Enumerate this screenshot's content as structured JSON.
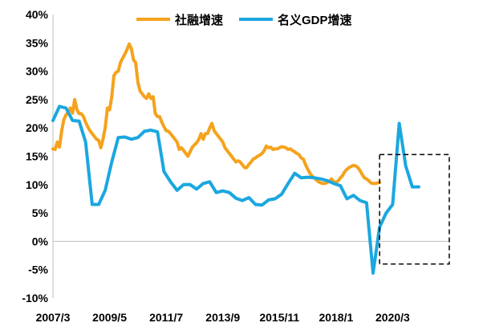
{
  "chart_data": {
    "type": "line",
    "title": "",
    "xlabel": "",
    "ylabel": "",
    "x_ticks": [
      "2007/3",
      "2009/5",
      "2011/7",
      "2013/9",
      "2015/11",
      "2018/1",
      "2020/3"
    ],
    "x_tick_months": [
      0,
      26,
      52,
      78,
      104,
      130,
      156
    ],
    "y_ticks": [
      "40%",
      "35%",
      "30%",
      "25%",
      "20%",
      "15%",
      "10%",
      "5%",
      "0%",
      "-5%",
      "-10%"
    ],
    "y_tick_values": [
      40,
      35,
      30,
      25,
      20,
      15,
      10,
      5,
      0,
      -5,
      -10
    ],
    "ylim": [
      -10,
      40
    ],
    "xlim_months": [
      0,
      182
    ],
    "legend_position": "top-right",
    "highlight_box": {
      "x_from": 150,
      "x_to": 182,
      "y_from": -4,
      "y_to": 15.3,
      "style": "dashed"
    },
    "series": [
      {
        "name": "社融增速",
        "color": "#F5A21D",
        "points": [
          [
            0,
            16.3
          ],
          [
            1,
            16.2
          ],
          [
            2,
            17.5
          ],
          [
            3,
            16.6
          ],
          [
            4,
            19.5
          ],
          [
            5,
            21.5
          ],
          [
            6,
            22.3
          ],
          [
            7,
            22.8
          ],
          [
            8,
            23.5
          ],
          [
            9,
            22.6
          ],
          [
            10,
            25.0
          ],
          [
            11,
            23.2
          ],
          [
            12,
            22.5
          ],
          [
            13,
            22.5
          ],
          [
            14,
            22.0
          ],
          [
            15,
            21.0
          ],
          [
            16,
            20.2
          ],
          [
            17,
            19.5
          ],
          [
            18,
            19.0
          ],
          [
            19,
            18.5
          ],
          [
            20,
            18.0
          ],
          [
            21,
            17.8
          ],
          [
            22,
            16.5
          ],
          [
            23,
            18.0
          ],
          [
            24,
            20.0
          ],
          [
            25,
            23.5
          ],
          [
            26,
            23.2
          ],
          [
            27,
            25.5
          ],
          [
            28,
            29.2
          ],
          [
            29,
            29.8
          ],
          [
            30,
            30.0
          ],
          [
            31,
            31.5
          ],
          [
            32,
            32.3
          ],
          [
            33,
            33.0
          ],
          [
            34,
            33.8
          ],
          [
            35,
            34.8
          ],
          [
            36,
            34.0
          ],
          [
            37,
            32.0
          ],
          [
            38,
            31.5
          ],
          [
            39,
            28.0
          ],
          [
            40,
            26.5
          ],
          [
            41,
            26.0
          ],
          [
            42,
            25.5
          ],
          [
            43,
            25.2
          ],
          [
            44,
            26.0
          ],
          [
            45,
            25.2
          ],
          [
            46,
            25.5
          ],
          [
            47,
            22.5
          ],
          [
            48,
            22.0
          ],
          [
            49,
            22.0
          ],
          [
            50,
            21.0
          ],
          [
            51,
            20.2
          ],
          [
            52,
            19.5
          ],
          [
            53,
            19.4
          ],
          [
            54,
            19.0
          ],
          [
            55,
            18.5
          ],
          [
            56,
            18.0
          ],
          [
            57,
            17.5
          ],
          [
            58,
            16.2
          ],
          [
            59,
            16.5
          ],
          [
            60,
            16.0
          ],
          [
            61,
            15.5
          ],
          [
            62,
            15.0
          ],
          [
            63,
            15.8
          ],
          [
            64,
            16.6
          ],
          [
            65,
            17.0
          ],
          [
            66,
            17.4
          ],
          [
            67,
            18.0
          ],
          [
            68,
            19.0
          ],
          [
            69,
            18.0
          ],
          [
            70,
            19.0
          ],
          [
            71,
            19.0
          ],
          [
            72,
            20.0
          ],
          [
            73,
            20.8
          ],
          [
            74,
            19.5
          ],
          [
            75,
            19.0
          ],
          [
            76,
            18.5
          ],
          [
            77,
            18.0
          ],
          [
            78,
            17.5
          ],
          [
            79,
            16.5
          ],
          [
            80,
            16.0
          ],
          [
            81,
            15.5
          ],
          [
            82,
            15.0
          ],
          [
            83,
            14.5
          ],
          [
            84,
            14.0
          ],
          [
            85,
            14.2
          ],
          [
            86,
            14.0
          ],
          [
            87,
            13.5
          ],
          [
            88,
            13.0
          ],
          [
            89,
            13.0
          ],
          [
            90,
            13.6
          ],
          [
            91,
            14.0
          ],
          [
            92,
            14.5
          ],
          [
            93,
            14.7
          ],
          [
            94,
            15.0
          ],
          [
            95,
            15.2
          ],
          [
            96,
            15.5
          ],
          [
            97,
            16.0
          ],
          [
            98,
            16.8
          ],
          [
            99,
            16.5
          ],
          [
            100,
            16.6
          ],
          [
            101,
            16.2
          ],
          [
            102,
            16.3
          ],
          [
            103,
            16.3
          ],
          [
            104,
            16.5
          ],
          [
            105,
            16.7
          ],
          [
            106,
            16.6
          ],
          [
            107,
            16.5
          ],
          [
            108,
            16.2
          ],
          [
            109,
            16.3
          ],
          [
            110,
            16.0
          ],
          [
            111,
            15.8
          ],
          [
            112,
            15.5
          ],
          [
            113,
            15.3
          ],
          [
            114,
            14.7
          ],
          [
            115,
            14.5
          ],
          [
            116,
            13.5
          ],
          [
            117,
            12.7
          ],
          [
            118,
            12.0
          ],
          [
            119,
            11.5
          ],
          [
            120,
            11.2
          ],
          [
            121,
            10.8
          ],
          [
            122,
            10.5
          ],
          [
            123,
            10.3
          ],
          [
            124,
            10.2
          ],
          [
            125,
            10.2
          ],
          [
            126,
            10.4
          ],
          [
            127,
            10.7
          ],
          [
            128,
            11.0
          ],
          [
            129,
            10.5
          ],
          [
            130,
            10.4
          ],
          [
            131,
            10.7
          ],
          [
            132,
            11.2
          ],
          [
            133,
            11.6
          ],
          [
            134,
            12.3
          ],
          [
            135,
            12.7
          ],
          [
            136,
            13.0
          ],
          [
            137,
            13.2
          ],
          [
            138,
            13.4
          ],
          [
            139,
            13.3
          ],
          [
            140,
            13.0
          ],
          [
            141,
            12.5
          ],
          [
            142,
            11.8
          ],
          [
            143,
            11.2
          ],
          [
            144,
            11.0
          ],
          [
            145,
            10.7
          ],
          [
            146,
            10.3
          ],
          [
            147,
            10.2
          ],
          [
            148,
            10.2
          ],
          [
            149,
            10.3
          ],
          [
            150,
            10.4
          ]
        ]
      },
      {
        "name": "名义GDP增速",
        "color": "#1BA7E0",
        "points": [
          [
            0,
            21.3
          ],
          [
            3,
            23.8
          ],
          [
            6,
            23.5
          ],
          [
            9,
            21.3
          ],
          [
            12,
            21.2
          ],
          [
            15,
            17.5
          ],
          [
            18,
            6.5
          ],
          [
            21,
            6.5
          ],
          [
            24,
            9.0
          ],
          [
            27,
            14.0
          ],
          [
            30,
            18.3
          ],
          [
            33,
            18.4
          ],
          [
            36,
            18.0
          ],
          [
            39,
            18.3
          ],
          [
            42,
            19.4
          ],
          [
            45,
            19.6
          ],
          [
            48,
            19.3
          ],
          [
            51,
            12.3
          ],
          [
            54,
            10.5
          ],
          [
            57,
            9.0
          ],
          [
            60,
            10.0
          ],
          [
            63,
            10.0
          ],
          [
            66,
            9.2
          ],
          [
            69,
            10.2
          ],
          [
            72,
            10.5
          ],
          [
            75,
            8.6
          ],
          [
            78,
            8.9
          ],
          [
            81,
            8.6
          ],
          [
            84,
            7.6
          ],
          [
            87,
            7.2
          ],
          [
            90,
            7.7
          ],
          [
            93,
            6.5
          ],
          [
            96,
            6.4
          ],
          [
            99,
            7.3
          ],
          [
            102,
            7.5
          ],
          [
            105,
            8.3
          ],
          [
            108,
            10.2
          ],
          [
            111,
            12.0
          ],
          [
            114,
            11.2
          ],
          [
            117,
            11.3
          ],
          [
            120,
            11.2
          ],
          [
            123,
            11.0
          ],
          [
            126,
            10.7
          ],
          [
            129,
            10.2
          ],
          [
            132,
            9.8
          ],
          [
            135,
            7.5
          ],
          [
            138,
            8.1
          ],
          [
            141,
            7.2
          ],
          [
            144,
            6.8
          ],
          [
            147,
            -5.6
          ],
          [
            150,
            2.5
          ],
          [
            153,
            5.0
          ],
          [
            156,
            6.5
          ],
          [
            159,
            20.8
          ],
          [
            162,
            13.3
          ],
          [
            165,
            9.6
          ],
          [
            168,
            9.6
          ]
        ]
      }
    ]
  }
}
